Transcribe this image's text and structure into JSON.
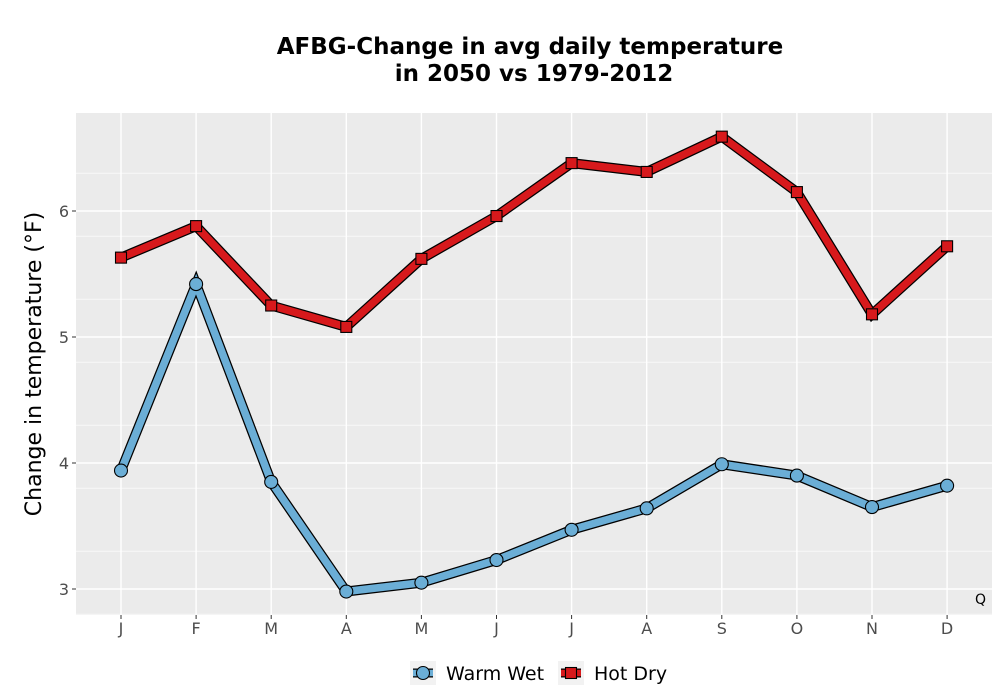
{
  "chart_data": {
    "type": "line",
    "title_line1": "AFBG-Change in avg daily temperature",
    "title_line2": "in 2050 vs 1979-2012",
    "xlabel": "",
    "ylabel": "Change in temperature (°F)",
    "categories": [
      "J",
      "F",
      "M",
      "A",
      "M",
      "J",
      "J",
      "A",
      "S",
      "O",
      "N",
      "D"
    ],
    "ylim": [
      2.8,
      6.8
    ],
    "yticks": [
      3,
      4,
      5,
      6
    ],
    "grid": true,
    "legend_position": "bottom",
    "corner_label": "Q",
    "series": [
      {
        "name": "Warm Wet",
        "marker": "circle",
        "color": "#6baed6",
        "values": [
          3.94,
          5.42,
          3.85,
          2.98,
          3.05,
          3.23,
          3.47,
          3.64,
          3.99,
          3.9,
          3.65,
          3.82
        ]
      },
      {
        "name": "Hot Dry",
        "marker": "square",
        "color": "#d7191c",
        "values": [
          5.63,
          5.88,
          5.25,
          5.08,
          5.62,
          5.96,
          6.38,
          6.31,
          6.59,
          6.15,
          5.18,
          5.72
        ]
      }
    ]
  }
}
